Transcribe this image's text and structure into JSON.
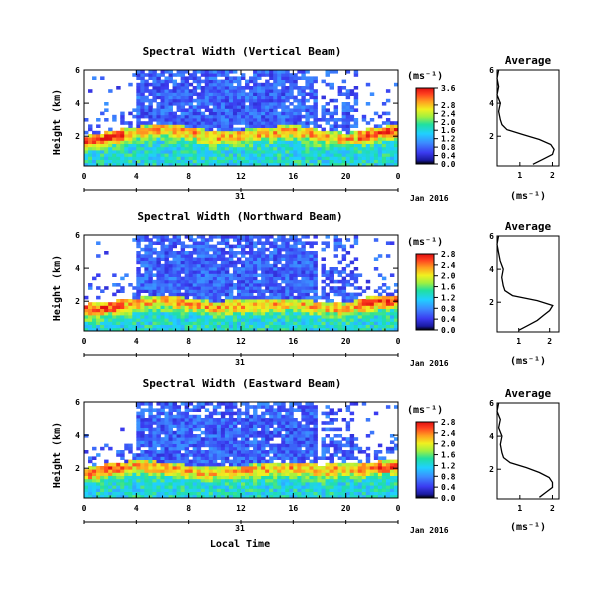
{
  "figure": {
    "time_axis_label": "Local Time",
    "date_label": "Jan 2016",
    "day_label": "31",
    "colorbar_unit": "(ms⁻¹)",
    "avg_title": "Average",
    "avg_xlabel": "(ms⁻¹)"
  },
  "chart_data": [
    {
      "type": "heatmap",
      "title": "Spectral Width (Vertical Beam)",
      "ylabel": "Height (km)",
      "xlabel": "Local Time",
      "x_ticks": [
        "0",
        "4",
        "8",
        "12",
        "16",
        "20",
        "0"
      ],
      "xlim": [
        0,
        24
      ],
      "y_ticks": [
        "2",
        "4",
        "6"
      ],
      "ylim": [
        0.2,
        6
      ],
      "colorbar": {
        "ticks": [
          "0.0",
          "0.4",
          "0.8",
          "1.2",
          "1.6",
          "2.0",
          "2.4",
          "2.8",
          "3.6"
        ],
        "range": [
          0,
          3.6
        ]
      },
      "structure": {
        "low_layer_top_km": [
          [
            0,
            2.0
          ],
          [
            2,
            2.3
          ],
          [
            4,
            2.6
          ],
          [
            6,
            2.8
          ],
          [
            8,
            2.6
          ],
          [
            10,
            2.3
          ],
          [
            12,
            2.4
          ],
          [
            16,
            2.7
          ],
          [
            18,
            2.4
          ],
          [
            20,
            2.2
          ],
          [
            22,
            2.5
          ],
          [
            24,
            2.7
          ]
        ]
      },
      "average_profile": {
        "title": "Average",
        "x_ticks": [
          "1",
          "2"
        ],
        "y_ticks": [
          "2",
          "4",
          "6"
        ],
        "xlim": [
          0.3,
          2.2
        ],
        "ylim": [
          0.2,
          6
        ],
        "height_km": [
          0.3,
          0.6,
          0.9,
          1.2,
          1.5,
          1.8,
          2.1,
          2.4,
          2.7,
          3.0,
          3.5,
          4.0,
          4.5,
          5.0,
          5.5,
          6.0
        ],
        "width_ms": [
          1.4,
          1.7,
          2.0,
          2.05,
          1.95,
          1.6,
          1.1,
          0.6,
          0.45,
          0.4,
          0.35,
          0.4,
          0.3,
          0.35,
          0.3,
          0.35
        ]
      }
    },
    {
      "type": "heatmap",
      "title": "Spectral Width (Northward Beam)",
      "ylabel": "Height (km)",
      "xlabel": "Local Time",
      "x_ticks": [
        "0",
        "4",
        "8",
        "12",
        "16",
        "20",
        "0"
      ],
      "xlim": [
        0,
        24
      ],
      "y_ticks": [
        "2",
        "4",
        "6"
      ],
      "ylim": [
        0.2,
        6
      ],
      "colorbar": {
        "ticks": [
          "0.0",
          "0.4",
          "0.8",
          "1.2",
          "1.6",
          "2.0",
          "2.4",
          "2.8"
        ],
        "range": [
          0,
          2.8
        ]
      },
      "structure": {
        "low_layer_top_km": [
          [
            0,
            1.8
          ],
          [
            2,
            2.0
          ],
          [
            4,
            2.2
          ],
          [
            6,
            2.4
          ],
          [
            8,
            2.2
          ],
          [
            10,
            2.0
          ],
          [
            12,
            2.1
          ],
          [
            16,
            2.2
          ],
          [
            18,
            2.0
          ],
          [
            20,
            1.9
          ],
          [
            22,
            2.3
          ],
          [
            24,
            2.4
          ]
        ]
      },
      "average_profile": {
        "title": "Average",
        "x_ticks": [
          "1",
          "2"
        ],
        "y_ticks": [
          "2",
          "4",
          "6"
        ],
        "xlim": [
          0.3,
          2.3
        ],
        "ylim": [
          0.2,
          6
        ],
        "height_km": [
          0.3,
          0.6,
          0.9,
          1.2,
          1.5,
          1.8,
          2.1,
          2.4,
          2.7,
          3.0,
          3.5,
          4.0,
          4.5,
          5.0,
          5.5,
          6.0
        ],
        "width_ms": [
          1.0,
          1.3,
          1.6,
          1.8,
          2.0,
          2.1,
          1.6,
          0.8,
          0.55,
          0.5,
          0.45,
          0.5,
          0.4,
          0.35,
          0.3,
          0.35
        ]
      }
    },
    {
      "type": "heatmap",
      "title": "Spectral Width (Eastward Beam)",
      "ylabel": "Height (km)",
      "xlabel": "Local Time",
      "x_ticks": [
        "0",
        "4",
        "8",
        "12",
        "16",
        "20",
        "0"
      ],
      "xlim": [
        0,
        24
      ],
      "y_ticks": [
        "2",
        "4",
        "6"
      ],
      "ylim": [
        0.2,
        6
      ],
      "colorbar": {
        "ticks": [
          "0.0",
          "0.4",
          "0.8",
          "1.2",
          "1.6",
          "2.0",
          "2.4",
          "2.8"
        ],
        "range": [
          0,
          2.8
        ]
      },
      "structure": {
        "low_layer_top_km": [
          [
            0,
            2.0
          ],
          [
            2,
            2.3
          ],
          [
            4,
            2.5
          ],
          [
            6,
            2.4
          ],
          [
            8,
            2.2
          ],
          [
            10,
            2.1
          ],
          [
            12,
            2.2
          ],
          [
            16,
            2.4
          ],
          [
            18,
            2.2
          ],
          [
            20,
            2.3
          ],
          [
            22,
            2.4
          ],
          [
            24,
            2.5
          ]
        ]
      },
      "average_profile": {
        "title": "Average",
        "x_ticks": [
          "1",
          "2"
        ],
        "y_ticks": [
          "2",
          "4",
          "6"
        ],
        "xlim": [
          0.3,
          2.2
        ],
        "ylim": [
          0.2,
          6
        ],
        "height_km": [
          0.3,
          0.6,
          0.9,
          1.2,
          1.5,
          1.8,
          2.1,
          2.4,
          2.7,
          3.0,
          3.5,
          4.0,
          4.5,
          5.0,
          5.5,
          6.0
        ],
        "width_ms": [
          1.6,
          1.8,
          2.0,
          2.0,
          1.9,
          1.6,
          1.2,
          0.7,
          0.5,
          0.45,
          0.4,
          0.45,
          0.35,
          0.4,
          0.3,
          0.35
        ]
      }
    }
  ]
}
